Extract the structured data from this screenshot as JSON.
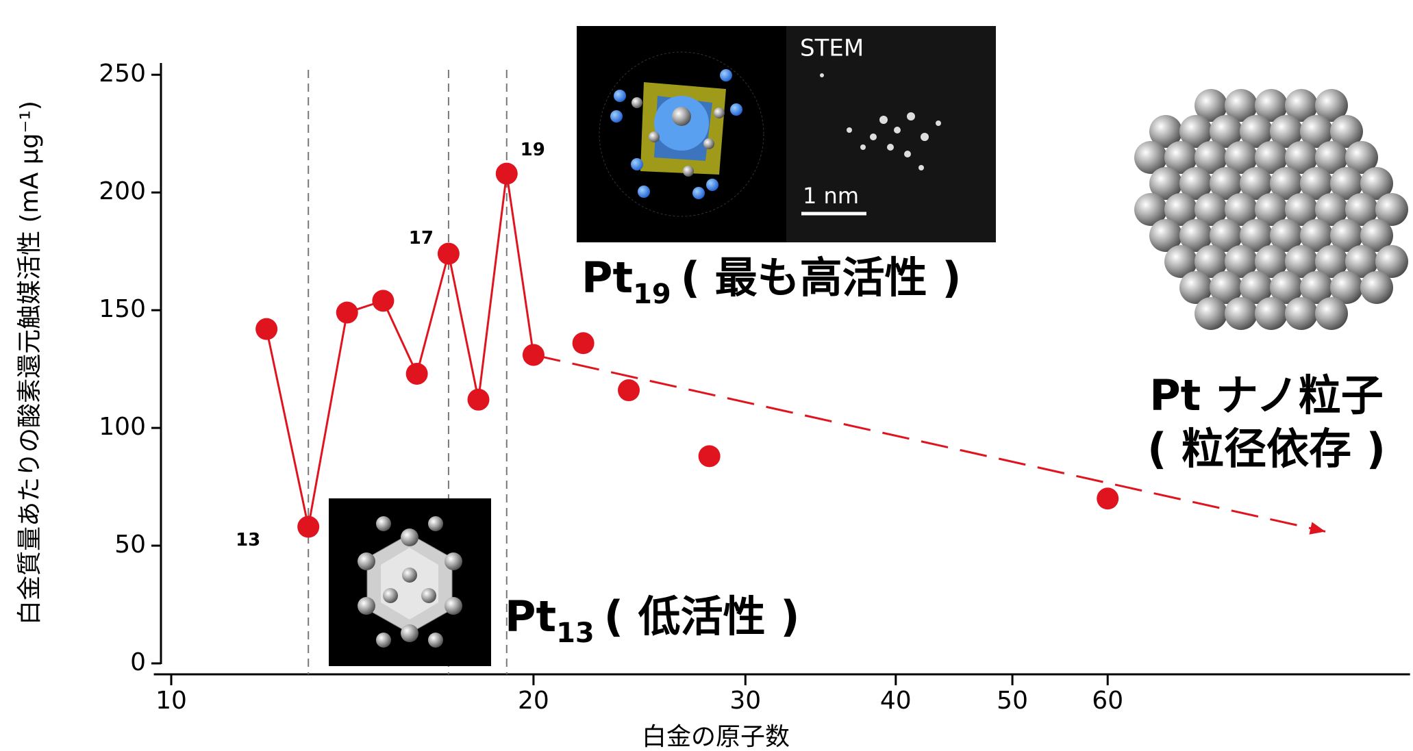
{
  "chart_data": {
    "type": "line",
    "y_label": "白金質量あたりの酸素還元触媒活性 (mA μg⁻¹)",
    "x_label": "白金の原子数",
    "xscale": "log",
    "xlim": [
      9.8,
      107
    ],
    "xticks": [
      10,
      20,
      30,
      40,
      50,
      60
    ],
    "ylim": [
      0,
      255
    ],
    "yticks": [
      0,
      50,
      100,
      150,
      200,
      250
    ],
    "vlines": [
      13,
      17,
      19
    ],
    "series": [
      {
        "color": "#e0141e",
        "style": "solid",
        "markers": true,
        "x": [
          12,
          13,
          14,
          15,
          16,
          17,
          18,
          19,
          20
        ],
        "values": [
          142,
          58,
          149,
          154,
          123,
          174,
          112,
          208,
          131
        ]
      },
      {
        "color": "#e0141e",
        "style": "none",
        "markers": true,
        "x": [
          22,
          24,
          28,
          60
        ],
        "values": [
          136,
          116,
          88,
          70
        ]
      },
      {
        "color": "#e0141e",
        "style": "dashed-arrow",
        "markers": false,
        "x": [
          20,
          91
        ],
        "values": [
          131,
          56
        ]
      }
    ],
    "annotations": [
      {
        "text": "13",
        "x": 13,
        "y": 58
      },
      {
        "text": "17",
        "x": 17,
        "y": 174
      },
      {
        "text": "19",
        "x": 19,
        "y": 208
      }
    ],
    "pt13": {
      "name": "Pt",
      "sub": "13",
      "note": "( 低活性 )"
    },
    "pt19": {
      "name": "Pt",
      "sub": "19",
      "note": "( 最も高活性 )",
      "stem": "STEM",
      "scale": "1 nm"
    },
    "nano": {
      "line1": "Pt ナノ粒子",
      "line2": "( 粒径依存 )"
    }
  }
}
